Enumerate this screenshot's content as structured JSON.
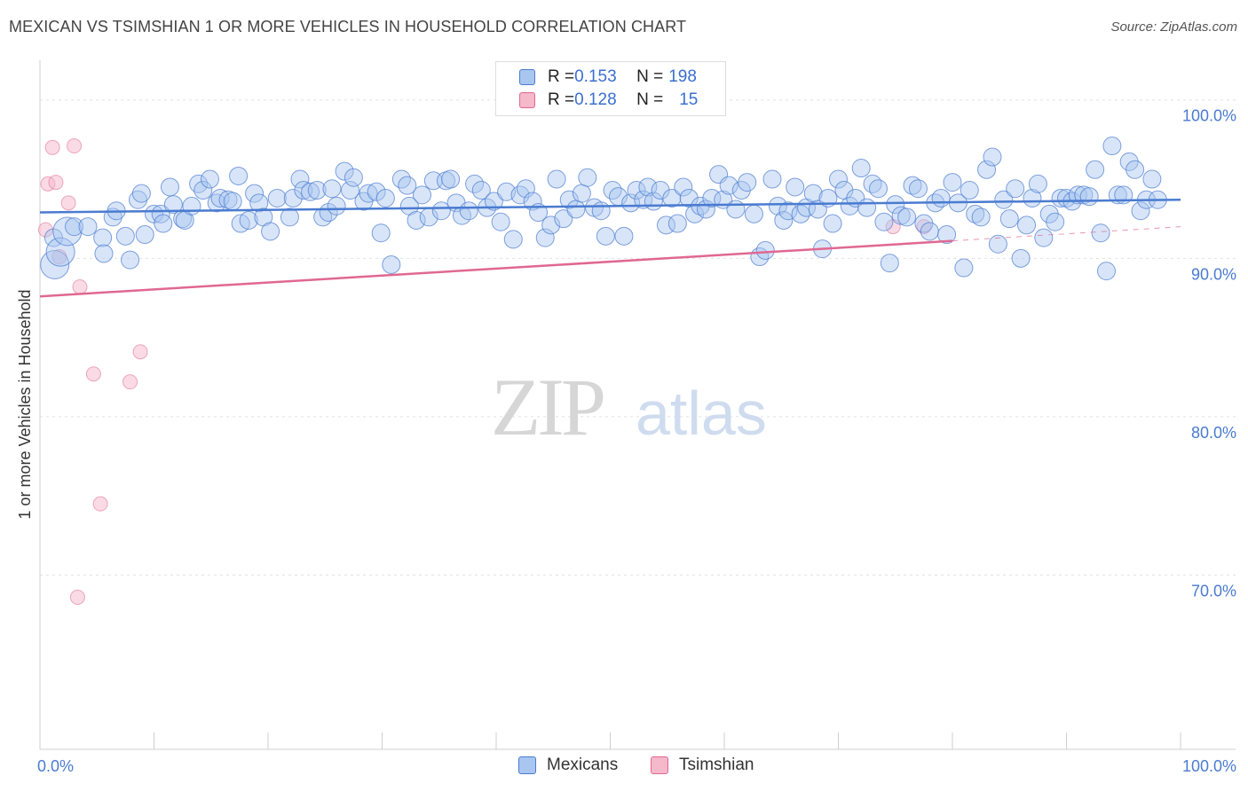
{
  "title": "MEXICAN VS TSIMSHIAN 1 OR MORE VEHICLES IN HOUSEHOLD CORRELATION CHART",
  "source": "Source: ZipAtlas.com",
  "watermark": {
    "zip": "ZIP",
    "atlas": "atlas"
  },
  "colors": {
    "blue": "#4a7bd0",
    "blue_fill": "#a9c6f0",
    "pink": "#e06890",
    "pink_fill": "#f6b8cb"
  },
  "legend": {
    "rows": [
      {
        "r_label": "R = ",
        "r_value": "0.153",
        "n_label": "N = ",
        "n_value": "198"
      },
      {
        "r_label": "R = ",
        "r_value": "0.128",
        "n_label": "N = ",
        "n_value": "15"
      }
    ]
  },
  "bottom_legend": [
    "Mexicans",
    "Tsimshian"
  ],
  "chart_data": {
    "type": "scatter",
    "xlabel": "",
    "ylabel": "1 or more Vehicles in Household",
    "xlim": [
      0,
      100
    ],
    "ylim": [
      59,
      102
    ],
    "x_tick_labels": [
      "0.0%",
      "100.0%"
    ],
    "y_ticks": [
      70,
      80,
      90,
      100
    ],
    "y_tick_labels": [
      "70.0%",
      "80.0%",
      "90.0%",
      "100.0%"
    ],
    "series": [
      {
        "name": "Mexicans",
        "trend": {
          "x": [
            0,
            100
          ],
          "y": [
            92.9,
            93.7
          ]
        },
        "points": [
          [
            1.2,
            91.3,
            1
          ],
          [
            1.3,
            89.6,
            2
          ],
          [
            1.8,
            90.4,
            2
          ],
          [
            2.4,
            91.7,
            2
          ],
          [
            3.0,
            92.0,
            1
          ],
          [
            4.2,
            92.0,
            1
          ],
          [
            5.5,
            91.3,
            1
          ],
          [
            5.6,
            90.3,
            1
          ],
          [
            6.4,
            92.6,
            1
          ],
          [
            6.7,
            93.0,
            1
          ],
          [
            7.5,
            91.4,
            1
          ],
          [
            7.9,
            89.9,
            1
          ],
          [
            8.6,
            93.7,
            1
          ],
          [
            8.9,
            94.1,
            1
          ],
          [
            9.2,
            91.5,
            1
          ],
          [
            10.0,
            92.8,
            1
          ],
          [
            10.6,
            92.8,
            1
          ],
          [
            10.8,
            92.2,
            1
          ],
          [
            11.4,
            94.5,
            1
          ],
          [
            11.7,
            93.4,
            1
          ],
          [
            12.5,
            92.5,
            1
          ],
          [
            12.7,
            92.4,
            1
          ],
          [
            13.3,
            93.3,
            1
          ],
          [
            13.9,
            94.7,
            1
          ],
          [
            14.3,
            94.3,
            1
          ],
          [
            14.9,
            95.0,
            1
          ],
          [
            15.5,
            93.5,
            1
          ],
          [
            15.8,
            93.8,
            1
          ],
          [
            16.5,
            93.7,
            1
          ],
          [
            16.9,
            93.6,
            1
          ],
          [
            17.4,
            95.2,
            1
          ],
          [
            17.6,
            92.2,
            1
          ],
          [
            18.3,
            92.4,
            1
          ],
          [
            18.8,
            94.1,
            1
          ],
          [
            19.2,
            93.5,
            1
          ],
          [
            19.6,
            92.6,
            1
          ],
          [
            20.2,
            91.7,
            1
          ],
          [
            20.8,
            93.8,
            1
          ],
          [
            21.9,
            92.6,
            1
          ],
          [
            22.2,
            93.8,
            1
          ],
          [
            22.8,
            95.0,
            1
          ],
          [
            23.1,
            94.3,
            1
          ],
          [
            23.7,
            94.2,
            1
          ],
          [
            24.3,
            94.3,
            1
          ],
          [
            24.8,
            92.6,
            1
          ],
          [
            25.3,
            92.9,
            1
          ],
          [
            25.6,
            94.4,
            1
          ],
          [
            26.0,
            93.3,
            1
          ],
          [
            26.7,
            95.5,
            1
          ],
          [
            27.2,
            94.3,
            1
          ],
          [
            27.5,
            95.1,
            1
          ],
          [
            28.4,
            93.6,
            1
          ],
          [
            28.8,
            94.1,
            1
          ],
          [
            29.5,
            94.2,
            1
          ],
          [
            29.9,
            91.6,
            1
          ],
          [
            30.3,
            93.8,
            1
          ],
          [
            30.8,
            89.6,
            1
          ],
          [
            31.7,
            95.0,
            1
          ],
          [
            32.2,
            94.6,
            1
          ],
          [
            32.4,
            93.3,
            1
          ],
          [
            33.0,
            92.4,
            1
          ],
          [
            33.5,
            94.0,
            1
          ],
          [
            34.1,
            92.6,
            1
          ],
          [
            34.5,
            94.9,
            1
          ],
          [
            35.2,
            93.0,
            1
          ],
          [
            35.6,
            94.9,
            1
          ],
          [
            36.0,
            95.0,
            1
          ],
          [
            36.5,
            93.5,
            1
          ],
          [
            37.0,
            92.7,
            1
          ],
          [
            37.6,
            93.0,
            1
          ],
          [
            38.1,
            94.7,
            1
          ],
          [
            38.7,
            94.3,
            1
          ],
          [
            39.2,
            93.2,
            1
          ],
          [
            39.8,
            93.6,
            1
          ],
          [
            40.4,
            92.3,
            1
          ],
          [
            40.9,
            94.2,
            1
          ],
          [
            41.5,
            91.2,
            1
          ],
          [
            42.1,
            94.0,
            1
          ],
          [
            42.6,
            94.4,
            1
          ],
          [
            43.2,
            93.6,
            1
          ],
          [
            43.7,
            92.9,
            1
          ],
          [
            44.3,
            91.3,
            1
          ],
          [
            44.8,
            92.1,
            1
          ],
          [
            45.3,
            95.0,
            1
          ],
          [
            45.9,
            92.5,
            1
          ],
          [
            46.4,
            93.7,
            1
          ],
          [
            47.0,
            93.1,
            1
          ],
          [
            47.5,
            94.1,
            1
          ],
          [
            48.0,
            95.1,
            1
          ],
          [
            48.6,
            93.2,
            1
          ],
          [
            49.2,
            93.0,
            1
          ],
          [
            49.6,
            91.4,
            1
          ],
          [
            50.2,
            94.3,
            1
          ],
          [
            50.7,
            93.9,
            1
          ],
          [
            51.2,
            91.4,
            1
          ],
          [
            51.8,
            93.5,
            1
          ],
          [
            52.3,
            94.3,
            1
          ],
          [
            52.9,
            93.7,
            1
          ],
          [
            53.3,
            94.5,
            1
          ],
          [
            53.8,
            93.6,
            1
          ],
          [
            54.4,
            94.3,
            1
          ],
          [
            54.9,
            92.1,
            1
          ],
          [
            55.4,
            93.8,
            1
          ],
          [
            55.9,
            92.2,
            1
          ],
          [
            56.4,
            94.5,
            1
          ],
          [
            56.9,
            93.8,
            1
          ],
          [
            57.4,
            92.8,
            1
          ],
          [
            57.9,
            93.3,
            1
          ],
          [
            58.4,
            93.1,
            1
          ],
          [
            58.9,
            93.8,
            1
          ],
          [
            59.5,
            95.3,
            1
          ],
          [
            59.9,
            93.7,
            1
          ],
          [
            60.4,
            94.6,
            1
          ],
          [
            61.0,
            93.1,
            1
          ],
          [
            61.5,
            94.3,
            1
          ],
          [
            62.0,
            94.8,
            1
          ],
          [
            62.6,
            92.8,
            1
          ],
          [
            63.1,
            90.1,
            1
          ],
          [
            63.6,
            90.5,
            1
          ],
          [
            64.2,
            95.0,
            1
          ],
          [
            64.7,
            93.3,
            1
          ],
          [
            65.2,
            92.4,
            1
          ],
          [
            65.6,
            93.0,
            1
          ],
          [
            66.2,
            94.5,
            1
          ],
          [
            66.7,
            92.8,
            1
          ],
          [
            67.2,
            93.2,
            1
          ],
          [
            67.8,
            94.1,
            1
          ],
          [
            68.2,
            93.1,
            1
          ],
          [
            68.6,
            90.6,
            1
          ],
          [
            69.1,
            93.8,
            1
          ],
          [
            69.5,
            92.2,
            1
          ],
          [
            70.0,
            95.0,
            1
          ],
          [
            70.5,
            94.3,
            1
          ],
          [
            71.0,
            93.3,
            1
          ],
          [
            71.5,
            93.8,
            1
          ],
          [
            72.0,
            95.7,
            1
          ],
          [
            72.5,
            93.2,
            1
          ],
          [
            73.0,
            94.7,
            1
          ],
          [
            73.5,
            94.4,
            1
          ],
          [
            74.0,
            92.3,
            1
          ],
          [
            74.5,
            89.7,
            1
          ],
          [
            75.0,
            93.4,
            1
          ],
          [
            75.5,
            92.7,
            1
          ],
          [
            76.0,
            92.6,
            1
          ],
          [
            76.5,
            94.6,
            1
          ],
          [
            77.0,
            94.4,
            1
          ],
          [
            77.5,
            92.2,
            1
          ],
          [
            78.0,
            91.7,
            1
          ],
          [
            78.5,
            93.5,
            1
          ],
          [
            79.0,
            93.8,
            1
          ],
          [
            79.5,
            91.5,
            1
          ],
          [
            80.0,
            94.8,
            1
          ],
          [
            80.5,
            93.5,
            1
          ],
          [
            81.0,
            89.4,
            1
          ],
          [
            81.5,
            94.3,
            1
          ],
          [
            82.0,
            92.8,
            1
          ],
          [
            82.5,
            92.6,
            1
          ],
          [
            83.0,
            95.6,
            1
          ],
          [
            83.5,
            96.4,
            1
          ],
          [
            84.0,
            90.9,
            1
          ],
          [
            84.5,
            93.7,
            1
          ],
          [
            85.0,
            92.5,
            1
          ],
          [
            85.5,
            94.4,
            1
          ],
          [
            86.0,
            90.0,
            1
          ],
          [
            86.5,
            92.1,
            1
          ],
          [
            87.0,
            93.8,
            1
          ],
          [
            87.5,
            94.7,
            1
          ],
          [
            88.0,
            91.3,
            1
          ],
          [
            88.5,
            92.8,
            1
          ],
          [
            89.0,
            92.3,
            1
          ],
          [
            89.5,
            93.8,
            1
          ],
          [
            90.0,
            93.8,
            1
          ],
          [
            90.5,
            93.6,
            1
          ],
          [
            91.0,
            94.0,
            1
          ],
          [
            91.5,
            94.0,
            1
          ],
          [
            92.0,
            93.9,
            1
          ],
          [
            92.5,
            95.6,
            1
          ],
          [
            93.0,
            91.6,
            1
          ],
          [
            93.5,
            89.2,
            1
          ],
          [
            94.0,
            97.1,
            1
          ],
          [
            94.5,
            94.0,
            1
          ],
          [
            95.0,
            94.0,
            1
          ],
          [
            95.5,
            96.1,
            1
          ],
          [
            96.0,
            95.6,
            1
          ],
          [
            96.5,
            93.0,
            1
          ],
          [
            97.0,
            93.7,
            1
          ],
          [
            97.5,
            95.0,
            1
          ],
          [
            98.0,
            93.7,
            1
          ]
        ]
      },
      {
        "name": "Tsimshian",
        "trend": {
          "x": [
            0,
            80
          ],
          "y": [
            87.6,
            91.1
          ]
        },
        "trend_ext": {
          "x": [
            80,
            100
          ],
          "y": [
            91.1,
            92.0
          ]
        },
        "points": [
          [
            0.5,
            91.8,
            1
          ],
          [
            0.7,
            94.7,
            1
          ],
          [
            1.1,
            97.0,
            1
          ],
          [
            1.4,
            94.8,
            1
          ],
          [
            1.7,
            90.1,
            1
          ],
          [
            2.5,
            93.5,
            1
          ],
          [
            3.0,
            97.1,
            1
          ],
          [
            3.5,
            88.2,
            1
          ],
          [
            4.7,
            82.7,
            1
          ],
          [
            5.3,
            74.5,
            1
          ],
          [
            7.9,
            82.2,
            1
          ],
          [
            8.8,
            84.1,
            1
          ],
          [
            3.3,
            68.6,
            1
          ],
          [
            74.8,
            92.0,
            1
          ],
          [
            77.5,
            92.0,
            1
          ]
        ]
      }
    ]
  }
}
